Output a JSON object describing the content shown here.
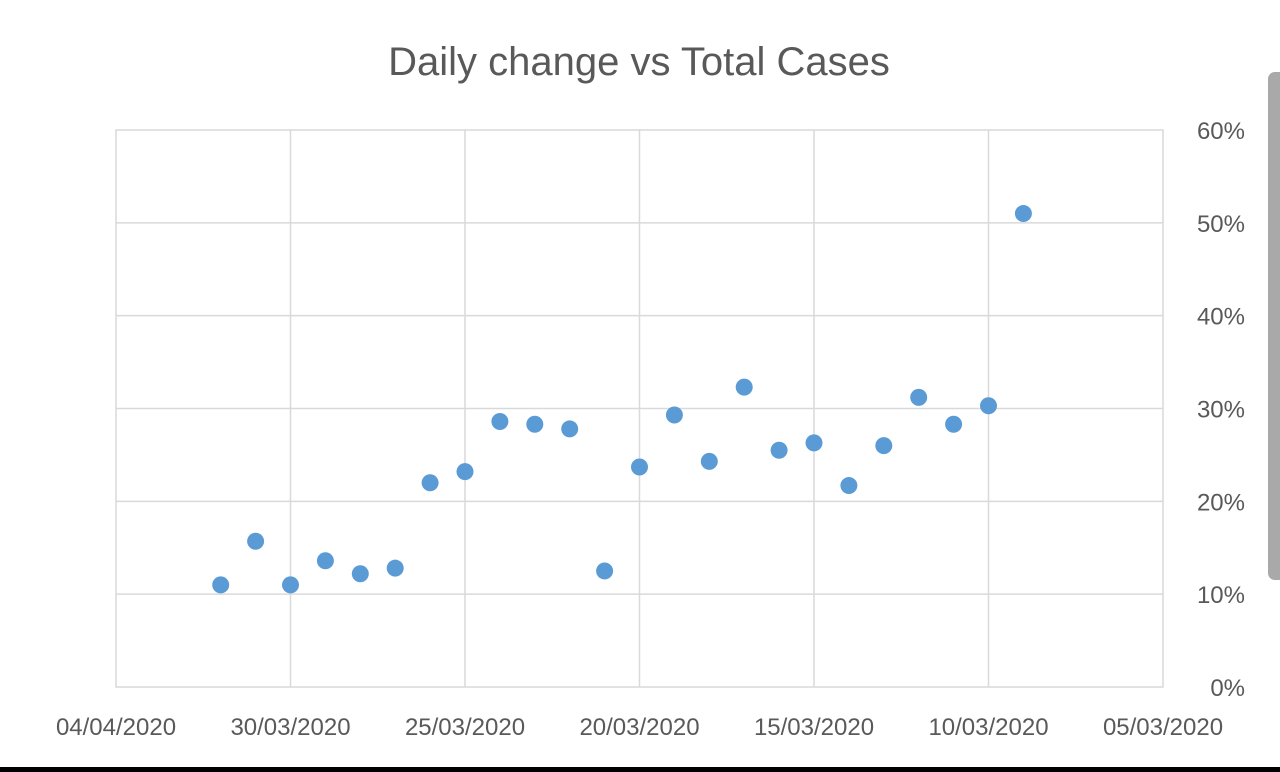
{
  "chart_data": {
    "type": "scatter",
    "title": "Daily change vs Total Cases",
    "x_axis": {
      "reversed": true,
      "ticks": [
        "04/04/2020",
        "30/03/2020",
        "25/03/2020",
        "20/03/2020",
        "15/03/2020",
        "10/03/2020",
        "05/03/2020"
      ]
    },
    "y_axis": {
      "position": "right",
      "ticks": [
        "0%",
        "10%",
        "20%",
        "30%",
        "40%",
        "50%",
        "60%"
      ],
      "ylim": [
        0,
        60
      ]
    },
    "grid": true,
    "marker_color": "#5b9bd5",
    "series": [
      {
        "points": [
          {
            "x": "09/03/2020",
            "y": 51
          },
          {
            "x": "10/03/2020",
            "y": 30.3
          },
          {
            "x": "11/03/2020",
            "y": 28.3
          },
          {
            "x": "12/03/2020",
            "y": 31.2
          },
          {
            "x": "13/03/2020",
            "y": 26
          },
          {
            "x": "14/03/2020",
            "y": 21.7
          },
          {
            "x": "15/03/2020",
            "y": 26.3
          },
          {
            "x": "16/03/2020",
            "y": 25.5
          },
          {
            "x": "17/03/2020",
            "y": 32.3
          },
          {
            "x": "18/03/2020",
            "y": 24.3
          },
          {
            "x": "19/03/2020",
            "y": 29.3
          },
          {
            "x": "20/03/2020",
            "y": 23.7
          },
          {
            "x": "21/03/2020",
            "y": 12.5
          },
          {
            "x": "22/03/2020",
            "y": 27.8
          },
          {
            "x": "23/03/2020",
            "y": 28.3
          },
          {
            "x": "24/03/2020",
            "y": 28.6
          },
          {
            "x": "25/03/2020",
            "y": 23.2
          },
          {
            "x": "26/03/2020",
            "y": 22
          },
          {
            "x": "27/03/2020",
            "y": 12.8
          },
          {
            "x": "28/03/2020",
            "y": 12.2
          },
          {
            "x": "29/03/2020",
            "y": 13.6
          },
          {
            "x": "30/03/2020",
            "y": 11
          },
          {
            "x": "31/03/2020",
            "y": 15.7
          },
          {
            "x": "01/04/2020",
            "y": 11
          }
        ]
      }
    ]
  }
}
